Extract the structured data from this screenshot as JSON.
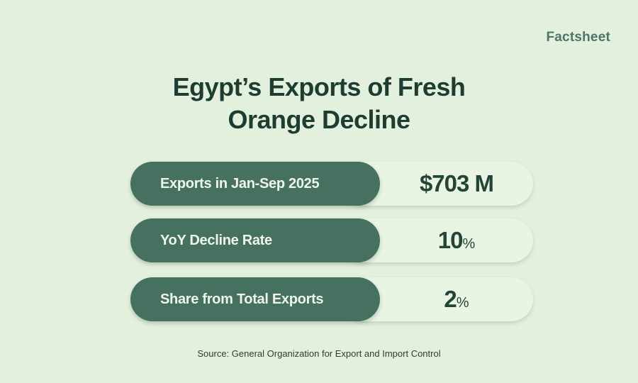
{
  "brand": "Factsheet",
  "title_line1": "Egypt’s Exports of Fresh",
  "title_line2": "Orange Decline",
  "stats": [
    {
      "label": "Exports in Jan-Sep 2025",
      "value": "$703 M",
      "unit": ""
    },
    {
      "label": "YoY Decline Rate",
      "value": "10",
      "unit": "%"
    },
    {
      "label": "Share from Total Exports",
      "value": "2",
      "unit": "%"
    }
  ],
  "source": "Source: General Organization for Export and Import Control",
  "colors": {
    "background": "#e3f0dd",
    "label_pill": "#467160",
    "value_pill": "#e9f4e3",
    "text_dark": "#1e3d32"
  }
}
